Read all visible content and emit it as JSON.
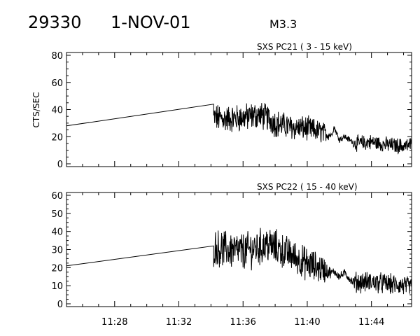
{
  "header": {
    "event_id": "29330",
    "date": "1-NOV-01",
    "flare_class": "M3.3"
  },
  "chart_data": [
    {
      "type": "line",
      "title": "SXS PC21  (  3 - 15 keV)",
      "ylabel": "CTS/SEC",
      "xlabel": "",
      "ylim": [
        0,
        80
      ],
      "yticks": [
        0,
        20,
        40,
        60,
        80
      ],
      "xlim": [
        "11:25:00",
        "11:46:30"
      ],
      "xticks": [
        "11:28",
        "11:32",
        "11:36",
        "11:40",
        "11:44"
      ],
      "grid": false,
      "series": [
        {
          "values": {
            "x": [
              "11:25:00",
              "11:34:10",
              "11:34:10",
              "11:35:00",
              "11:36:00",
              "11:37:00",
              "11:37:30",
              "11:38:00",
              "11:39:00",
              "11:40:00",
              "11:41:00",
              "11:41:30",
              "11:41:40",
              "11:42:00",
              "11:42:20",
              "11:42:50",
              "11:43:00",
              "11:44:00",
              "11:45:00",
              "11:46:00",
              "11:46:30"
            ],
            "y": [
              28,
              44,
              34,
              33,
              34,
              36,
              34,
              30,
              27,
              26,
              23,
              21,
              27,
              18,
              20,
              16,
              15,
              16,
              14,
              13,
              14
            ],
            "noise_amplitude": [
              0,
              0,
              9,
              9,
              9,
              9,
              9,
              9,
              8,
              8,
              7,
              2,
              2,
              2,
              2,
              2,
              5,
              5,
              5,
              5,
              5
            ]
          }
        }
      ]
    },
    {
      "type": "line",
      "title": "SXS PC22  ( 15 - 40 keV)",
      "ylabel": "",
      "xlabel": "",
      "ylim": [
        0,
        60
      ],
      "yticks": [
        0,
        10,
        20,
        30,
        40,
        50,
        60
      ],
      "xlim": [
        "11:25:00",
        "11:46:30"
      ],
      "xticks": [
        "11:28",
        "11:32",
        "11:36",
        "11:40",
        "11:44"
      ],
      "grid": false,
      "series": [
        {
          "values": {
            "x": [
              "11:25:00",
              "11:34:10",
              "11:34:10",
              "11:35:00",
              "11:36:00",
              "11:37:00",
              "11:37:30",
              "11:38:00",
              "11:39:00",
              "11:40:00",
              "11:41:00",
              "11:41:30",
              "11:41:40",
              "11:42:00",
              "11:42:20",
              "11:42:50",
              "11:43:00",
              "11:44:00",
              "11:45:00",
              "11:46:00",
              "11:46:30"
            ],
            "y": [
              21,
              32,
              31,
              30,
              29,
              31,
              33,
              31,
              27,
              22,
              19,
              17,
              18,
              15,
              17,
              12,
              12,
              12,
              11,
              10,
              9
            ],
            "noise_amplitude": [
              0,
              0,
              9,
              9,
              9,
              9,
              9,
              9,
              8,
              8,
              7,
              2,
              2,
              2,
              2,
              2,
              5,
              5,
              5,
              5,
              5
            ]
          }
        }
      ]
    }
  ]
}
